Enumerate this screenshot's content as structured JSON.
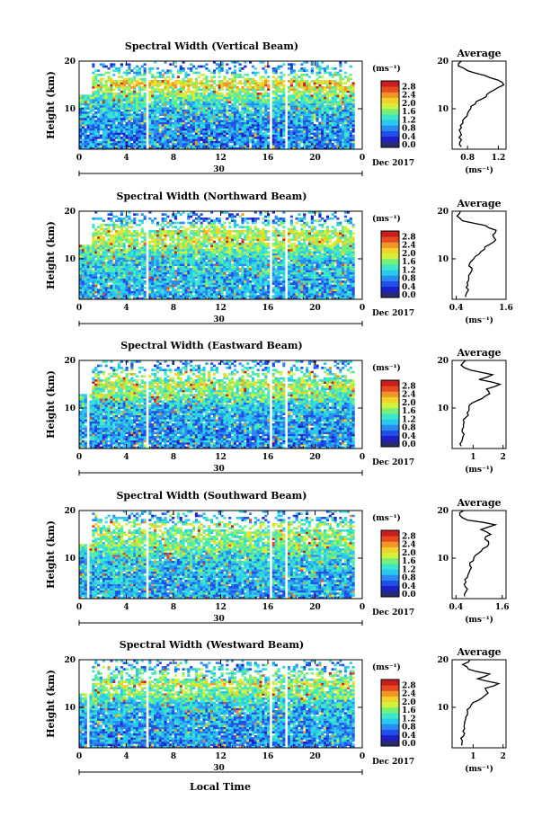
{
  "figure": {
    "bottom_label": "Local Time",
    "date_label": "Dec 2017",
    "day_label": "30",
    "ylabel": "Height (km)",
    "colorbar_unit": "(ms⁻¹)",
    "colorbar_ticks": [
      "0.0",
      "0.4",
      "0.8",
      "1.2",
      "1.6",
      "2.0",
      "2.4",
      "2.8"
    ],
    "avg_title": "Average",
    "avg_xlabel": "(ms⁻¹)"
  },
  "colors": {
    "colormap": [
      "#2a2a6e",
      "#1f1fc8",
      "#2050e8",
      "#2a8cf0",
      "#28c8f0",
      "#3ce8c8",
      "#78f078",
      "#d2f03c",
      "#f0d228",
      "#f09628",
      "#e84a20",
      "#c81e1e"
    ]
  },
  "chart_data": [
    {
      "type": "heatmap",
      "title": "Spectral Width (Vertical Beam)",
      "x_ticks": [
        "0",
        "4",
        "8",
        "12",
        "16",
        "20",
        "0"
      ],
      "xlim": [
        0,
        24
      ],
      "y_ticks": [
        "20",
        "10"
      ],
      "ylim": [
        1.5,
        20
      ],
      "colorbar_range": [
        0,
        3.0
      ],
      "data_gaps_hours": [
        5.8,
        16.3,
        17.6
      ],
      "profile": {
        "title": "Average",
        "xlim": [
          0.6,
          1.3
        ],
        "x_ticks": [
          "0.8",
          "1.2"
        ],
        "height_km": [
          2,
          3,
          4,
          5,
          6,
          7,
          8,
          9,
          10,
          11,
          12,
          13,
          14,
          15,
          16,
          17,
          18,
          19,
          20
        ],
        "values": [
          0.72,
          0.7,
          0.69,
          0.71,
          0.72,
          0.74,
          0.76,
          0.8,
          0.84,
          0.9,
          0.98,
          1.05,
          1.15,
          1.27,
          1.2,
          1.02,
          0.8,
          0.68,
          0.72
        ]
      }
    },
    {
      "type": "heatmap",
      "title": "Spectral Width (Northward Beam)",
      "x_ticks": [
        "0",
        "4",
        "8",
        "12",
        "16",
        "20",
        "0"
      ],
      "xlim": [
        0,
        24
      ],
      "y_ticks": [
        "20",
        "10"
      ],
      "ylim": [
        1.5,
        20
      ],
      "colorbar_range": [
        0,
        3.0
      ],
      "data_gaps_hours": [
        5.8,
        16.3,
        17.6
      ],
      "profile": {
        "title": "Average",
        "xlim": [
          0.3,
          1.6
        ],
        "x_ticks": [
          "0.4",
          "1.6"
        ],
        "height_km": [
          2,
          3,
          4,
          5,
          6,
          7,
          8,
          9,
          10,
          11,
          12,
          13,
          14,
          15,
          16,
          17,
          18,
          19,
          20
        ],
        "values": [
          0.62,
          0.66,
          0.64,
          0.66,
          0.7,
          0.74,
          0.78,
          0.72,
          0.82,
          0.95,
          1.08,
          1.2,
          1.35,
          1.28,
          1.36,
          1.1,
          0.55,
          0.42,
          0.5
        ]
      }
    },
    {
      "type": "heatmap",
      "title": "Spectral Width (Eastward Beam)",
      "x_ticks": [
        "0",
        "4",
        "8",
        "12",
        "16",
        "20",
        "0"
      ],
      "xlim": [
        0,
        24
      ],
      "y_ticks": [
        "20",
        "10"
      ],
      "ylim": [
        1.5,
        20
      ],
      "colorbar_range": [
        0,
        3.0
      ],
      "data_gaps_hours": [
        0.8,
        5.8,
        16.3,
        17.6
      ],
      "profile": {
        "title": "Average",
        "xlim": [
          0.3,
          2.1
        ],
        "x_ticks": [
          "1",
          "2"
        ],
        "height_km": [
          2,
          3,
          4,
          5,
          6,
          7,
          8,
          9,
          10,
          11,
          12,
          13,
          14,
          15,
          16,
          17,
          18,
          19,
          20
        ],
        "values": [
          0.6,
          0.62,
          0.66,
          0.64,
          0.68,
          0.7,
          0.75,
          0.8,
          0.86,
          0.95,
          1.3,
          1.55,
          1.45,
          1.9,
          1.2,
          1.65,
          0.9,
          0.6,
          0.75
        ]
      }
    },
    {
      "type": "heatmap",
      "title": "Spectral Width (Southward Beam)",
      "x_ticks": [
        "0",
        "4",
        "8",
        "12",
        "16",
        "20",
        "0"
      ],
      "xlim": [
        0,
        24
      ],
      "y_ticks": [
        "20",
        "10"
      ],
      "ylim": [
        1.5,
        20
      ],
      "colorbar_range": [
        0,
        3.0
      ],
      "data_gaps_hours": [
        0.8,
        5.8,
        16.3,
        17.6
      ],
      "profile": {
        "title": "Average",
        "xlim": [
          0.3,
          1.7
        ],
        "x_ticks": [
          "0.4",
          "1.6"
        ],
        "height_km": [
          2,
          3,
          4,
          5,
          6,
          7,
          8,
          9,
          10,
          11,
          12,
          13,
          14,
          15,
          16,
          17,
          18,
          19,
          20
        ],
        "values": [
          0.62,
          0.66,
          0.64,
          0.66,
          0.7,
          0.74,
          0.8,
          0.76,
          0.86,
          0.98,
          1.1,
          1.25,
          1.15,
          1.3,
          1.05,
          1.42,
          0.7,
          0.5,
          0.6
        ]
      }
    },
    {
      "type": "heatmap",
      "title": "Spectral Width (Westward Beam)",
      "x_ticks": [
        "0",
        "4",
        "8",
        "12",
        "16",
        "20",
        "0"
      ],
      "xlim": [
        0,
        24
      ],
      "y_ticks": [
        "20",
        "10"
      ],
      "ylim": [
        1.5,
        20
      ],
      "colorbar_range": [
        0,
        3.0
      ],
      "data_gaps_hours": [
        0.8,
        5.8,
        16.3,
        17.6
      ],
      "profile": {
        "title": "Average",
        "xlim": [
          0.3,
          2.1
        ],
        "x_ticks": [
          "1",
          "2"
        ],
        "height_km": [
          2,
          3,
          4,
          5,
          6,
          7,
          8,
          9,
          10,
          11,
          12,
          13,
          14,
          15,
          16,
          17,
          18,
          19,
          20
        ],
        "values": [
          0.62,
          0.64,
          0.68,
          0.66,
          0.7,
          0.72,
          0.76,
          0.82,
          0.9,
          1.0,
          1.3,
          1.5,
          1.4,
          1.85,
          1.15,
          1.55,
          0.85,
          0.65,
          0.9
        ]
      }
    }
  ]
}
